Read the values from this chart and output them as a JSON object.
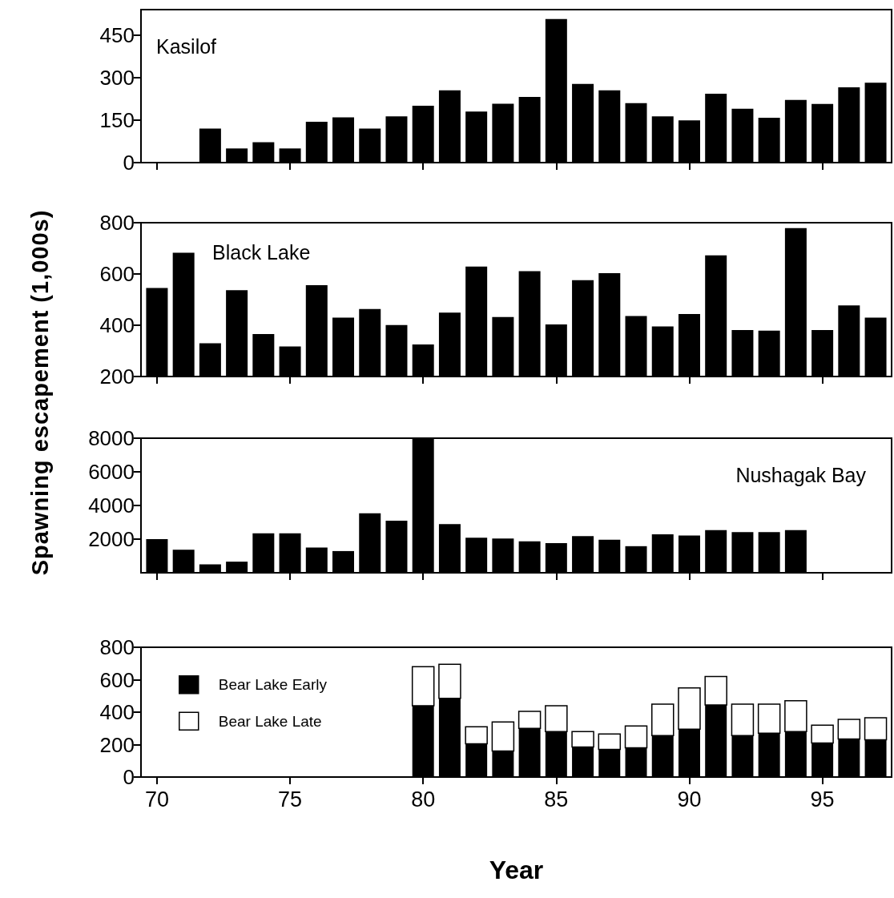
{
  "chart_data": [
    {
      "type": "bar",
      "title": "Kasilof",
      "ylabel": "Spawning escapement (1,000s)",
      "color": "#000000",
      "grid": false,
      "tick_labels": "y",
      "xlim": [
        69.4,
        97.6
      ],
      "xticks": [
        70,
        75,
        80,
        85,
        90,
        95
      ],
      "ylim": [
        0,
        540
      ],
      "yticks": [
        0,
        150,
        300,
        450
      ],
      "x": [
        72,
        73,
        74,
        75,
        76,
        77,
        78,
        79,
        80,
        81,
        82,
        83,
        84,
        85,
        86,
        87,
        88,
        89,
        90,
        91,
        92,
        93,
        94,
        95,
        96,
        97
      ],
      "values": [
        120,
        50,
        72,
        50,
        144,
        160,
        120,
        163,
        201,
        255,
        180,
        208,
        232,
        507,
        278,
        255,
        210,
        163,
        149,
        243,
        190,
        158,
        221,
        207,
        266,
        282
      ]
    },
    {
      "type": "bar",
      "title": "Black Lake",
      "color": "#000000",
      "grid": false,
      "tick_labels": "y",
      "xlim": [
        69.4,
        97.6
      ],
      "xticks": [
        70,
        75,
        80,
        85,
        90,
        95
      ],
      "ylim": [
        200,
        800
      ],
      "yticks": [
        200,
        400,
        600,
        800
      ],
      "x": [
        70,
        71,
        72,
        73,
        74,
        75,
        76,
        77,
        78,
        79,
        80,
        81,
        82,
        83,
        84,
        85,
        86,
        87,
        88,
        89,
        90,
        91,
        92,
        93,
        94,
        95,
        96,
        97
      ],
      "values": [
        545,
        683,
        330,
        537,
        366,
        317,
        556,
        430,
        463,
        401,
        325,
        449,
        629,
        432,
        611,
        403,
        576,
        603,
        436,
        395,
        444,
        673,
        381,
        379,
        779,
        381,
        477,
        430
      ]
    },
    {
      "type": "bar",
      "title": "Nushagak Bay",
      "color": "#000000",
      "grid": false,
      "tick_labels": "y",
      "xlim": [
        69.4,
        97.6
      ],
      "xticks": [
        70,
        75,
        80,
        85,
        90,
        95
      ],
      "ylim": [
        0,
        8000
      ],
      "yticks": [
        2000,
        4000,
        6000,
        8000
      ],
      "x": [
        70,
        71,
        72,
        73,
        74,
        75,
        76,
        77,
        78,
        79,
        80,
        81,
        82,
        83,
        84,
        85,
        86,
        87,
        88,
        89,
        90,
        91,
        92,
        93,
        94
      ],
      "values": [
        2000,
        1370,
        500,
        660,
        2340,
        2340,
        1500,
        1290,
        3530,
        3100,
        8000,
        2890,
        2080,
        2030,
        1870,
        1760,
        2180,
        1970,
        1580,
        2290,
        2210,
        2530,
        2420,
        2420,
        2530
      ]
    },
    {
      "type": "bar",
      "xlabel": "Year",
      "stacked": true,
      "legend": "top left",
      "grid": false,
      "xlim": [
        69.4,
        97.6
      ],
      "xticks": [
        70,
        75,
        80,
        85,
        90,
        95
      ],
      "ylim": [
        0,
        800
      ],
      "yticks": [
        0,
        200,
        400,
        600,
        800
      ],
      "x": [
        80,
        81,
        82,
        83,
        84,
        85,
        86,
        87,
        88,
        89,
        90,
        91,
        92,
        93,
        94,
        95,
        96,
        97
      ],
      "series": [
        {
          "name": "Bear Lake Early",
          "color": "#000000",
          "values": [
            440,
            485,
            205,
            160,
            300,
            280,
            185,
            170,
            180,
            255,
            295,
            445,
            255,
            270,
            280,
            210,
            235,
            230
          ]
        },
        {
          "name": "Bear Lake Late",
          "color": "#ffffff",
          "values": [
            240,
            210,
            105,
            180,
            105,
            160,
            95,
            95,
            135,
            195,
            255,
            175,
            195,
            180,
            190,
            110,
            120,
            135
          ]
        }
      ]
    }
  ]
}
